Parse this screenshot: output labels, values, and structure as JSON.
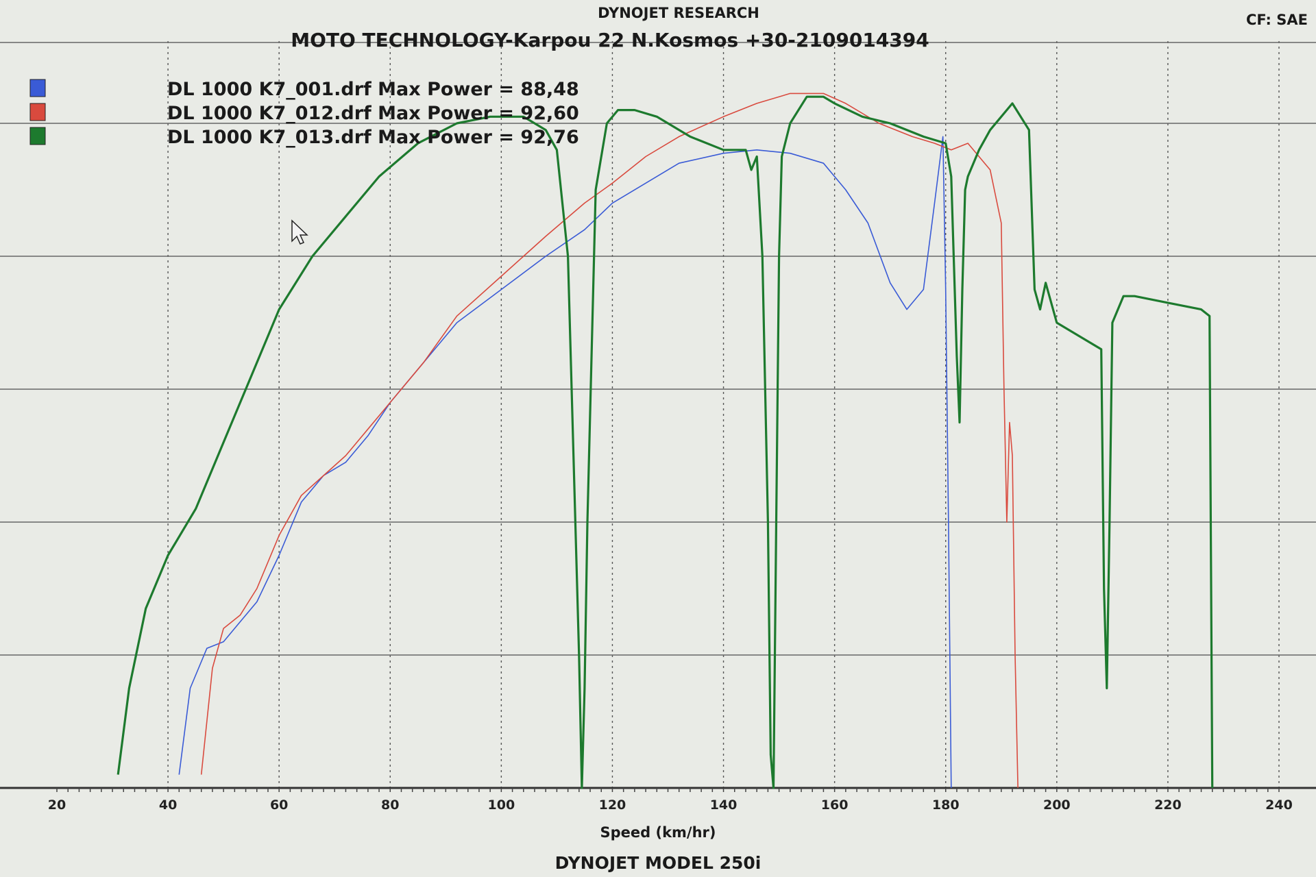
{
  "header": {
    "vendor": "DYNOJET RESEARCH",
    "shop": "MOTO TECHNOLOGY-Karpou 22 N.Kosmos +30-2109014394",
    "correction": "CF: SAE",
    "model": "DYNOJET  MODEL  250i"
  },
  "chart_data": {
    "type": "line",
    "title": "",
    "xlabel": "Speed (km/hr)",
    "ylabel": "",
    "xlim": [
      20,
      240
    ],
    "ylim": [
      0,
      100
    ],
    "x_ticks": [
      20,
      40,
      60,
      80,
      100,
      120,
      140,
      160,
      180,
      200,
      220,
      240
    ],
    "grid": true,
    "legend_placement": "top-left",
    "series": [
      {
        "name": "DL 1000  K7_001.drf Max Power = 88,48",
        "color": "#3a5bd6",
        "x": [
          42,
          44,
          47,
          50,
          53,
          56,
          60,
          64,
          68,
          72,
          76,
          80,
          86,
          92,
          100,
          108,
          115,
          120,
          126,
          132,
          140,
          146,
          152,
          158,
          162,
          166,
          170,
          173,
          176,
          178,
          179.5,
          180,
          180.5,
          181
        ],
        "y": [
          2,
          15,
          21,
          22,
          25,
          28,
          35,
          43,
          47,
          49,
          53,
          58,
          64,
          70,
          75,
          80,
          84,
          88,
          91,
          94,
          95.5,
          96,
          95.5,
          94,
          90,
          85,
          76,
          72,
          75,
          88,
          98,
          75,
          40,
          0
        ]
      },
      {
        "name": "DL 1000  K7_012.drf Max Power = 92,60",
        "color": "#d94a3e",
        "x": [
          46,
          48,
          50,
          53,
          56,
          60,
          64,
          68,
          72,
          76,
          80,
          86,
          92,
          100,
          108,
          115,
          120,
          126,
          132,
          140,
          146,
          152,
          158,
          162,
          168,
          174,
          178,
          181,
          184,
          188,
          190,
          190.5,
          191,
          191.5,
          192,
          192.5,
          193
        ],
        "y": [
          2,
          18,
          24,
          26,
          30,
          38,
          44,
          47,
          50,
          54,
          58,
          64,
          71,
          77,
          83,
          88,
          91,
          95,
          98,
          101,
          103,
          104.5,
          104.5,
          103,
          100,
          98,
          97,
          96,
          97,
          93,
          85,
          60,
          40,
          55,
          50,
          20,
          0
        ]
      },
      {
        "name": "DL 1000  K7_013.drf Max Power = 92,76",
        "color": "#1d7a2e",
        "x": [
          31,
          33,
          36,
          40,
          45,
          50,
          55,
          60,
          66,
          72,
          78,
          85,
          92,
          98,
          104,
          108,
          110,
          112,
          113,
          114,
          114.5,
          115,
          115.5,
          117,
          119,
          121,
          124,
          128,
          134,
          140,
          144,
          145,
          146,
          147,
          148,
          148.5,
          149,
          149.5,
          150,
          150.5,
          152,
          155,
          158,
          160,
          165,
          170,
          176,
          180,
          181,
          182,
          182.5,
          183,
          183.5,
          184,
          186,
          188,
          192,
          195,
          196,
          197,
          198,
          200,
          204,
          208,
          208.5,
          209,
          209.5,
          210,
          212,
          214,
          220,
          226,
          227.5,
          228
        ],
        "y": [
          2,
          15,
          27,
          35,
          42,
          52,
          62,
          72,
          80,
          86,
          92,
          97,
          100,
          101,
          101,
          99,
          96,
          80,
          50,
          20,
          0,
          15,
          40,
          90,
          100,
          102,
          102,
          101,
          98,
          96,
          96,
          93,
          95,
          80,
          40,
          5,
          0,
          40,
          80,
          95,
          100,
          104,
          104,
          103,
          101,
          100,
          98,
          97,
          92,
          65,
          55,
          75,
          90,
          92,
          96,
          99,
          103,
          99,
          75,
          72,
          76,
          70,
          68,
          66,
          30,
          15,
          40,
          70,
          74,
          74,
          73,
          72,
          71,
          0
        ]
      }
    ]
  }
}
